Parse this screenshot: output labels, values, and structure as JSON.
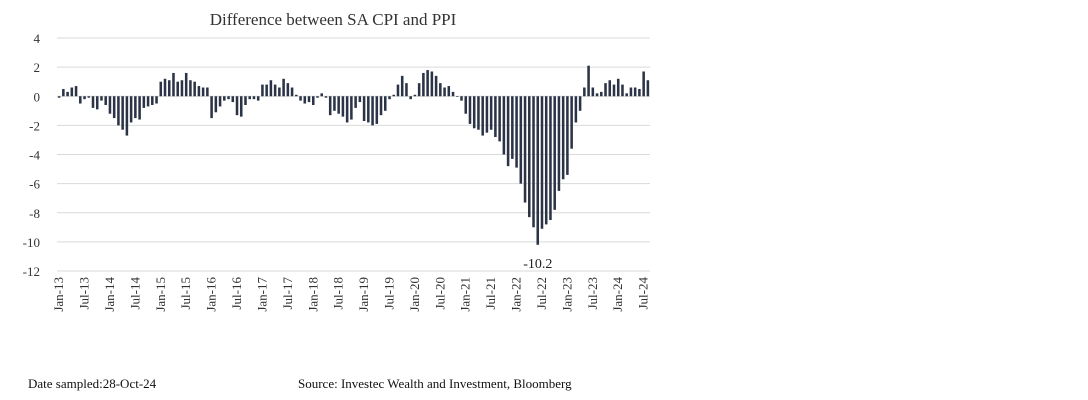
{
  "chart_data": {
    "type": "bar",
    "title": "Difference between SA CPI and PPI",
    "xlabel": "",
    "ylabel": "",
    "ylim": [
      -12,
      4
    ],
    "yticks": [
      4,
      2,
      0,
      -2,
      -4,
      -6,
      -8,
      -10,
      -12
    ],
    "grid": true,
    "bar_color": "#2b3446",
    "start_month": "Jan-13",
    "x_tick_labels": [
      "Jan-13",
      "Jul-13",
      "Jan-14",
      "Jul-14",
      "Jan-15",
      "Jul-15",
      "Jan-16",
      "Jul-16",
      "Jan-17",
      "Jul-17",
      "Jan-18",
      "Jul-18",
      "Jan-19",
      "Jul-19",
      "Jan-20",
      "Jul-20",
      "Jan-21",
      "Jul-21",
      "Jan-22",
      "Jul-22",
      "Jan-23",
      "Jul-23",
      "Jan-24",
      "Jul-24"
    ],
    "values": [
      -0.1,
      0.5,
      0.3,
      0.6,
      0.7,
      -0.5,
      -0.2,
      -0.1,
      -0.8,
      -0.9,
      -0.3,
      -0.6,
      -1.2,
      -1.5,
      -2.0,
      -2.3,
      -2.7,
      -1.8,
      -1.5,
      -1.6,
      -0.8,
      -0.7,
      -0.6,
      -0.5,
      1.0,
      1.2,
      1.1,
      1.6,
      1.0,
      1.1,
      1.6,
      1.1,
      1.0,
      0.7,
      0.6,
      0.6,
      -1.5,
      -1.1,
      -0.7,
      -0.3,
      -0.2,
      -0.4,
      -1.3,
      -1.4,
      -0.6,
      -0.2,
      -0.2,
      -0.3,
      0.8,
      0.8,
      1.1,
      0.8,
      0.6,
      1.2,
      0.9,
      0.6,
      0.1,
      -0.3,
      -0.5,
      -0.4,
      -0.6,
      -0.1,
      0.2,
      -0.1,
      -1.3,
      -1.0,
      -1.2,
      -1.4,
      -1.8,
      -1.6,
      -0.8,
      -0.4,
      -1.7,
      -1.8,
      -2.0,
      -1.9,
      -1.3,
      -1.0,
      -0.2,
      0.1,
      0.8,
      1.4,
      0.9,
      -0.2,
      0.1,
      0.9,
      1.6,
      1.8,
      1.7,
      1.4,
      0.9,
      0.6,
      0.7,
      0.3,
      0.0,
      -0.3,
      -1.2,
      -1.9,
      -2.2,
      -2.3,
      -2.7,
      -2.5,
      -2.3,
      -2.8,
      -3.1,
      -4.0,
      -4.8,
      -4.3,
      -4.9,
      -6.0,
      -7.3,
      -8.3,
      -9.0,
      -10.2,
      -9.1,
      -8.8,
      -8.5,
      -7.8,
      -6.5,
      -5.7,
      -5.4,
      -3.6,
      -1.8,
      -1.0,
      0.6,
      2.1,
      0.6,
      0.2,
      0.3,
      0.9,
      1.1,
      0.8,
      1.2,
      0.8,
      0.2,
      0.6,
      0.6,
      0.5,
      1.7,
      1.1
    ],
    "annotations": [
      {
        "month_index": 113,
        "text": "-10.2"
      }
    ]
  },
  "footer": {
    "date_sampled": "Date sampled:28-Oct-24",
    "source": "Source: Investec Wealth and Investment, Bloomberg"
  }
}
